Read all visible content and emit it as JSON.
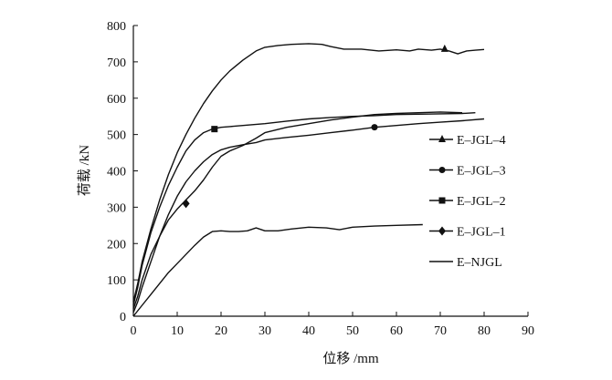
{
  "chart_data": {
    "type": "line",
    "title": "",
    "xlabel": "位移 /mm",
    "ylabel": "荷载 /kN",
    "xlim": [
      0,
      90
    ],
    "ylim": [
      0,
      800
    ],
    "xticks": [
      0,
      10,
      20,
      30,
      40,
      50,
      60,
      70,
      80,
      90
    ],
    "yticks": [
      0,
      100,
      200,
      300,
      400,
      500,
      600,
      700,
      800
    ],
    "grid": false,
    "legend_position": "right",
    "series": [
      {
        "name": "E–JGL–4",
        "marker": "triangle",
        "x": [
          0,
          1,
          2,
          4,
          6,
          8,
          10,
          12,
          14,
          16,
          18,
          20,
          22,
          25,
          28,
          30,
          33,
          36,
          40,
          43,
          45,
          48,
          52,
          56,
          60,
          63,
          65,
          68,
          70,
          72,
          74,
          76,
          78,
          80
        ],
        "y": [
          40,
          90,
          150,
          240,
          320,
          390,
          450,
          500,
          545,
          585,
          620,
          650,
          675,
          705,
          730,
          740,
          745,
          748,
          750,
          748,
          742,
          735,
          735,
          730,
          733,
          730,
          735,
          732,
          735,
          730,
          722,
          730,
          732,
          734
        ],
        "marker_points": [
          [
            71,
            735
          ]
        ]
      },
      {
        "name": "E–JGL–3",
        "marker": "circle",
        "x": [
          0,
          1,
          2,
          4,
          6,
          8,
          10,
          12,
          14,
          16,
          18,
          20,
          22,
          25,
          28,
          30,
          35,
          40,
          45,
          50,
          55,
          60,
          65,
          70,
          75,
          80
        ],
        "y": [
          10,
          40,
          80,
          150,
          220,
          280,
          330,
          370,
          400,
          425,
          445,
          458,
          465,
          472,
          478,
          485,
          492,
          498,
          505,
          512,
          520,
          525,
          530,
          534,
          538,
          543
        ],
        "marker_points": [
          [
            55,
            520
          ]
        ]
      },
      {
        "name": "E–JGL–2",
        "marker": "square",
        "x": [
          0,
          1,
          2,
          4,
          6,
          8,
          10,
          12,
          14,
          16,
          18,
          20,
          22,
          25,
          30,
          35,
          40,
          45,
          50,
          55,
          60,
          65,
          70,
          75,
          78
        ],
        "y": [
          30,
          80,
          140,
          230,
          300,
          360,
          410,
          455,
          485,
          505,
          515,
          520,
          522,
          525,
          530,
          537,
          543,
          547,
          550,
          552,
          555,
          556,
          557,
          558,
          560
        ],
        "marker_points": [
          [
            18.5,
            515
          ]
        ]
      },
      {
        "name": "E–JGL–1",
        "marker": "diamond",
        "x": [
          0,
          1,
          2,
          4,
          6,
          8,
          10,
          12,
          14,
          16,
          18,
          20,
          22,
          25,
          28,
          30,
          35,
          40,
          45,
          50,
          55,
          60,
          65,
          70,
          75
        ],
        "y": [
          20,
          55,
          100,
          170,
          220,
          265,
          295,
          320,
          345,
          375,
          410,
          440,
          455,
          470,
          490,
          505,
          520,
          530,
          540,
          548,
          555,
          558,
          560,
          562,
          560
        ],
        "marker_points": [
          [
            12,
            310
          ]
        ]
      },
      {
        "name": "E–NJGL",
        "marker": "none",
        "x": [
          0,
          1,
          2,
          4,
          6,
          8,
          10,
          12,
          14,
          16,
          18,
          20,
          22,
          24,
          26,
          28,
          30,
          33,
          36,
          40,
          44,
          47,
          50,
          55,
          60,
          66
        ],
        "y": [
          0,
          15,
          30,
          60,
          90,
          120,
          145,
          170,
          195,
          218,
          233,
          235,
          233,
          233,
          235,
          243,
          235,
          235,
          240,
          245,
          243,
          238,
          245,
          248,
          250,
          252
        ],
        "marker_points": []
      }
    ]
  }
}
